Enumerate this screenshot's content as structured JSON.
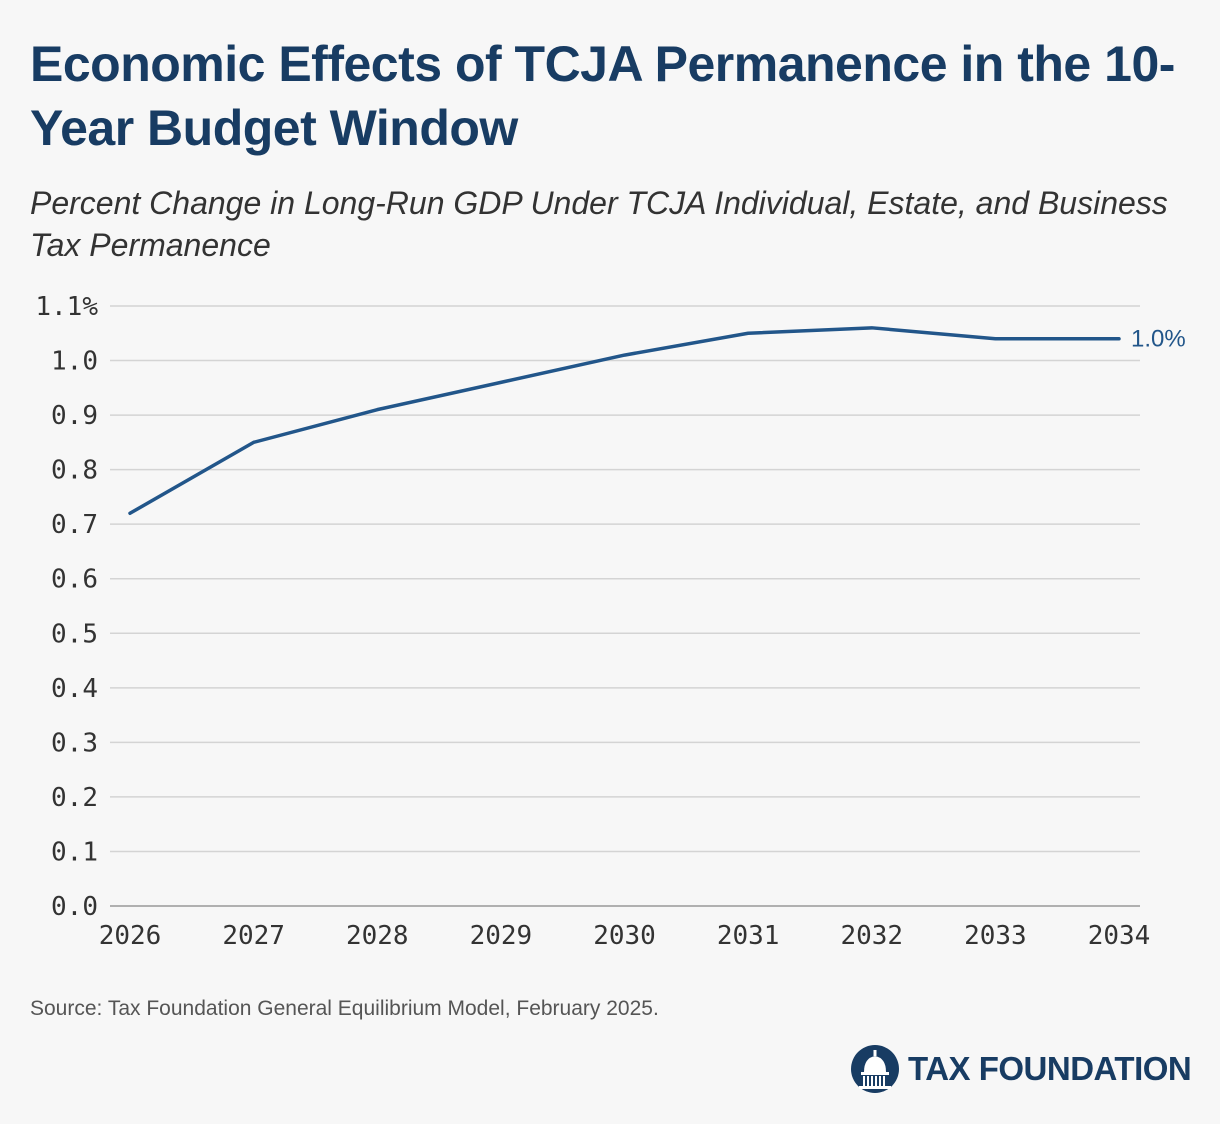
{
  "title": "Economic Effects of TCJA Permanence in the 10-Year Budget Window",
  "subtitle": "Percent Change in Long-Run GDP Under TCJA Individual, Estate, and Business Tax Permanence",
  "source": "Source: Tax Foundation General Equilibrium Model, February 2025.",
  "logo": {
    "text": "TAX FOUNDATION",
    "icon": "capitol-dome-icon"
  },
  "colors": {
    "title": "#183c63",
    "line": "#22568a",
    "grid": "#d4d4d4",
    "background": "#f7f7f7"
  },
  "chart_data": {
    "type": "line",
    "title": "Economic Effects of TCJA Permanence in the 10-Year Budget Window",
    "subtitle": "Percent Change in Long-Run GDP Under TCJA Individual, Estate, and Business Tax Permanence",
    "xlabel": "",
    "ylabel": "",
    "categories": [
      "2026",
      "2027",
      "2028",
      "2029",
      "2030",
      "2031",
      "2032",
      "2033",
      "2034"
    ],
    "series": [
      {
        "values": [
          0.72,
          0.85,
          0.91,
          0.96,
          1.01,
          1.05,
          1.06,
          1.04,
          1.04
        ]
      }
    ],
    "ylim": [
      0,
      1.1
    ],
    "yticks": [
      "0.0",
      "0.1",
      "0.2",
      "0.3",
      "0.4",
      "0.5",
      "0.6",
      "0.7",
      "0.8",
      "0.9",
      "1.0",
      "1.1%"
    ],
    "end_label": "1.0%",
    "grid": true,
    "legend": "none"
  }
}
